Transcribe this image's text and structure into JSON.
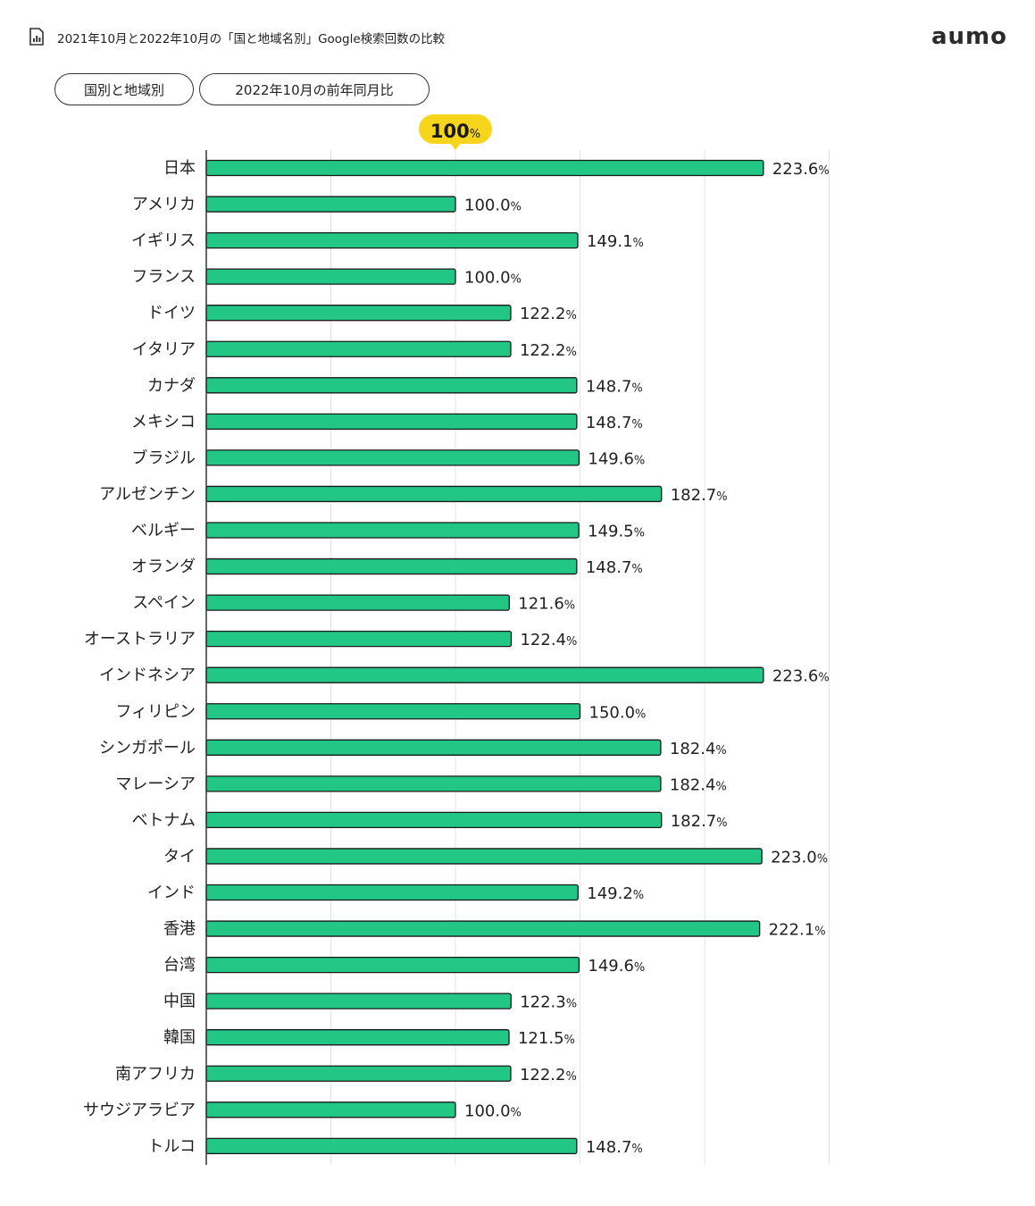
{
  "header": {
    "title": "2021年10月と2022年10月の「国と地域名別」Google検索回数の比較",
    "logo": "aumo",
    "icon": "chart-document-icon"
  },
  "tabs": [
    {
      "label": "国別と地域別"
    },
    {
      "label": "2022年10月の前年同月比"
    }
  ],
  "colors": {
    "bar": "#22c786",
    "marker": "#f7d51d",
    "grid": "#e3e3e3"
  },
  "chart_data": {
    "type": "bar",
    "orientation": "horizontal",
    "reference": {
      "value": 100,
      "label": "100",
      "unit": "%"
    },
    "unit": "%",
    "xlim": [
      0,
      250
    ],
    "grid": true,
    "categories": [
      "日本",
      "アメリカ",
      "イギリス",
      "フランス",
      "ドイツ",
      "イタリア",
      "カナダ",
      "メキシコ",
      "ブラジル",
      "アルゼンチン",
      "ベルギー",
      "オランダ",
      "スペイン",
      "オーストラリア",
      "インドネシア",
      "フィリピン",
      "シンガポール",
      "マレーシア",
      "ベトナム",
      "タイ",
      "インド",
      "香港",
      "台湾",
      "中国",
      "韓国",
      "南アフリカ",
      "サウジアラビア",
      "トルコ"
    ],
    "values": [
      223.6,
      100.0,
      149.1,
      100.0,
      122.2,
      122.2,
      148.7,
      148.7,
      149.6,
      182.7,
      149.5,
      148.7,
      121.6,
      122.4,
      223.6,
      150.0,
      182.4,
      182.4,
      182.7,
      223.0,
      149.2,
      222.1,
      149.6,
      122.3,
      121.5,
      122.2,
      100.0,
      148.7
    ],
    "value_labels": [
      "223.6",
      "100.0",
      "149.1",
      "100.0",
      "122.2",
      "122.2",
      "148.7",
      "148.7",
      "149.6",
      "182.7",
      "149.5",
      "148.7",
      "121.6",
      "122.4",
      "223.6",
      "150.0",
      "182.4",
      "182.4",
      "182.7",
      "223.0",
      "149.2",
      "222.1",
      "149.6",
      "122.3",
      "121.5",
      "122.2",
      "100.0",
      "148.7"
    ]
  }
}
